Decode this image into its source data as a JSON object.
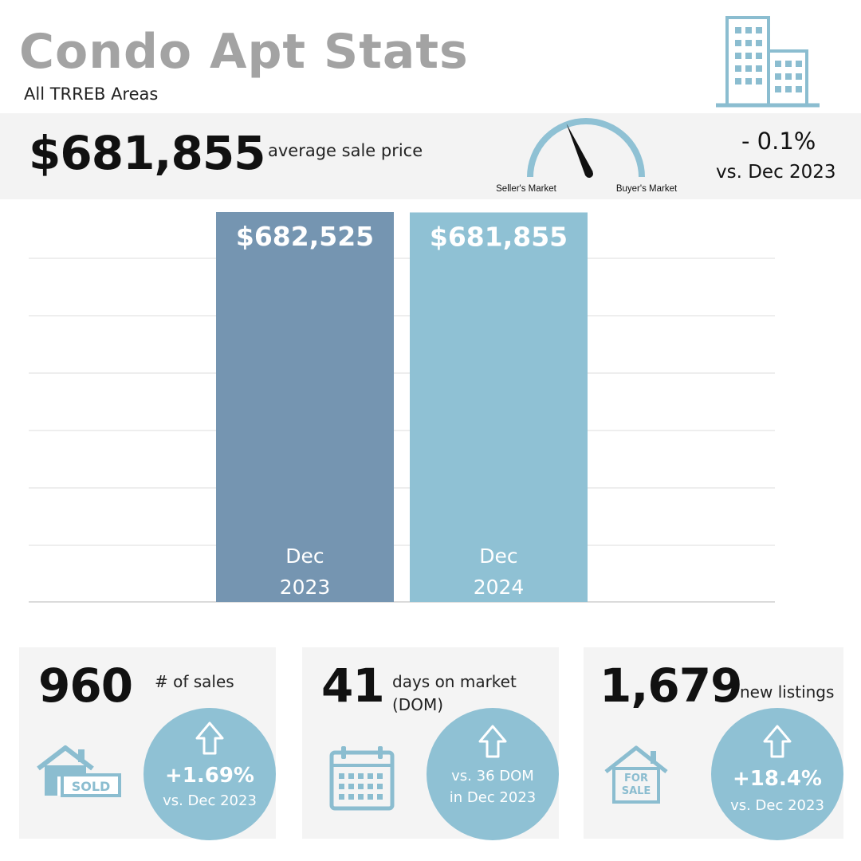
{
  "header": {
    "title": "Condo Apt Stats",
    "subtitle": "All TRREB Areas"
  },
  "summary": {
    "avg_price": "$681,855",
    "avg_price_label": "average sale price",
    "gauge_left_label": "Seller's Market",
    "gauge_right_label": "Buyer's Market",
    "gauge_position": 0.45,
    "change_pct": "- 0.1%",
    "change_vs": "vs. Dec 2023"
  },
  "chart_data": {
    "type": "bar",
    "categories": [
      "Dec 2023",
      "Dec 2024"
    ],
    "category_lines": [
      [
        "Dec",
        "2023"
      ],
      [
        "Dec",
        "2024"
      ]
    ],
    "values": [
      682525,
      681855
    ],
    "value_labels": [
      "$682,525",
      "$681,855"
    ],
    "title": "",
    "xlabel": "",
    "ylabel": "",
    "grid": true,
    "legend": false
  },
  "colors": {
    "bar_2023": "#7595b1",
    "bar_2024": "#8fc1d4",
    "accent": "#8fc1d4",
    "icon": "#8bbdd0"
  },
  "cards": {
    "sales": {
      "value": "960",
      "label": "# of sales",
      "icon_text": "SOLD",
      "change": "+1.69%",
      "change_vs": "vs. Dec 2023"
    },
    "dom": {
      "value": "41",
      "label_line1": "days on market",
      "label_line2": "(DOM)",
      "change_line1": "vs. 36 DOM",
      "change_line2": "in Dec 2023"
    },
    "listings": {
      "value": "1,679",
      "label": "new listings",
      "icon_text_1": "FOR",
      "icon_text_2": "SALE",
      "change": "+18.4%",
      "change_vs": "vs. Dec 2023"
    }
  }
}
